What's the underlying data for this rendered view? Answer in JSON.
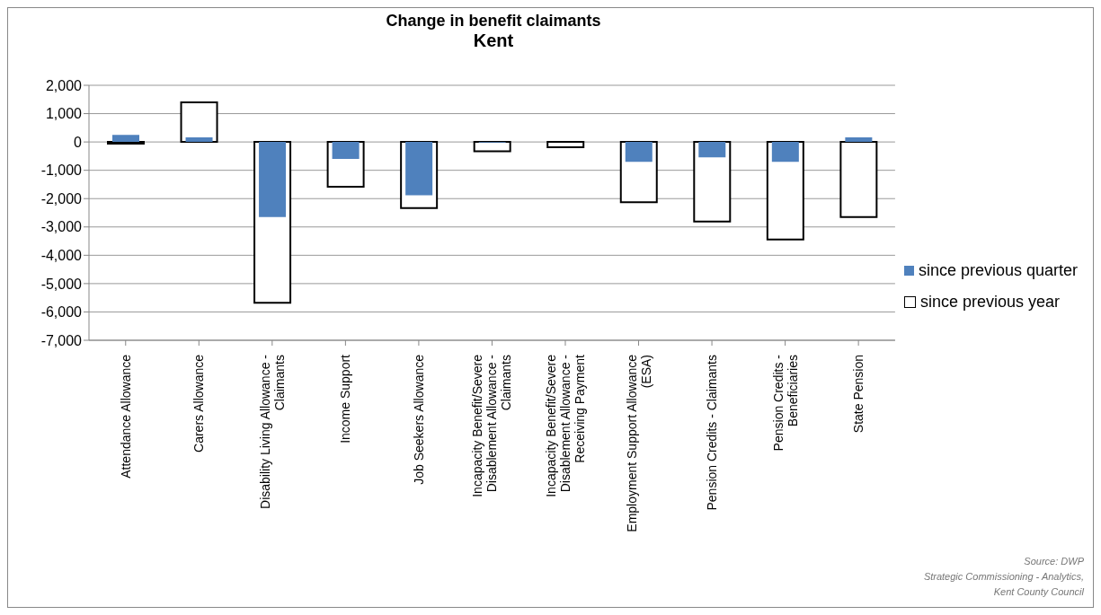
{
  "chart_data": {
    "type": "bar",
    "title": "Change in benefit claimants",
    "subtitle": "Kent",
    "categories": [
      "Attendance Allowance",
      "Carers Allowance",
      "Disability Living Allowance - Claimants",
      "Income Support",
      "Job Seekers Allowance",
      "Incapacity Benefit/Severe Disablement Allowance - Claimants",
      "Incapacity Benefit/Severe Disablement Allowance - Receiving Payment",
      "Employment Support Allowance (ESA)",
      "Pension Credits - Claimants",
      "Pension Credits - Beneficiaries",
      "State Pension"
    ],
    "series": [
      {
        "name": "since previous quarter",
        "color": "#4f81bd",
        "values": [
          250,
          160,
          -2650,
          -600,
          -1880,
          -20,
          null,
          -700,
          -540,
          -700,
          160
        ]
      },
      {
        "name": "since previous year",
        "color": "#ffffff",
        "values": [
          -60,
          1400,
          -5680,
          -1580,
          -2330,
          -330,
          -190,
          -2130,
          -2810,
          -3440,
          -2650
        ]
      }
    ],
    "ylim": [
      -7000,
      2000
    ],
    "yticks": [
      {
        "value": -7000,
        "label": "-7,000"
      },
      {
        "value": -6000,
        "label": "-6,000"
      },
      {
        "value": -5000,
        "label": "-5,000"
      },
      {
        "value": -4000,
        "label": "-4,000"
      },
      {
        "value": -3000,
        "label": "-3,000"
      },
      {
        "value": -2000,
        "label": "-2,000"
      },
      {
        "value": -1000,
        "label": "-1,000"
      },
      0,
      {
        "value": 1000,
        "label": "1,000"
      },
      {
        "value": 2000,
        "label": "2,000"
      }
    ],
    "grid": "y",
    "legend": "right",
    "annotations": [
      "Source: DWP",
      "Strategic Commissioning - Analytics,",
      "Kent County Council"
    ]
  }
}
